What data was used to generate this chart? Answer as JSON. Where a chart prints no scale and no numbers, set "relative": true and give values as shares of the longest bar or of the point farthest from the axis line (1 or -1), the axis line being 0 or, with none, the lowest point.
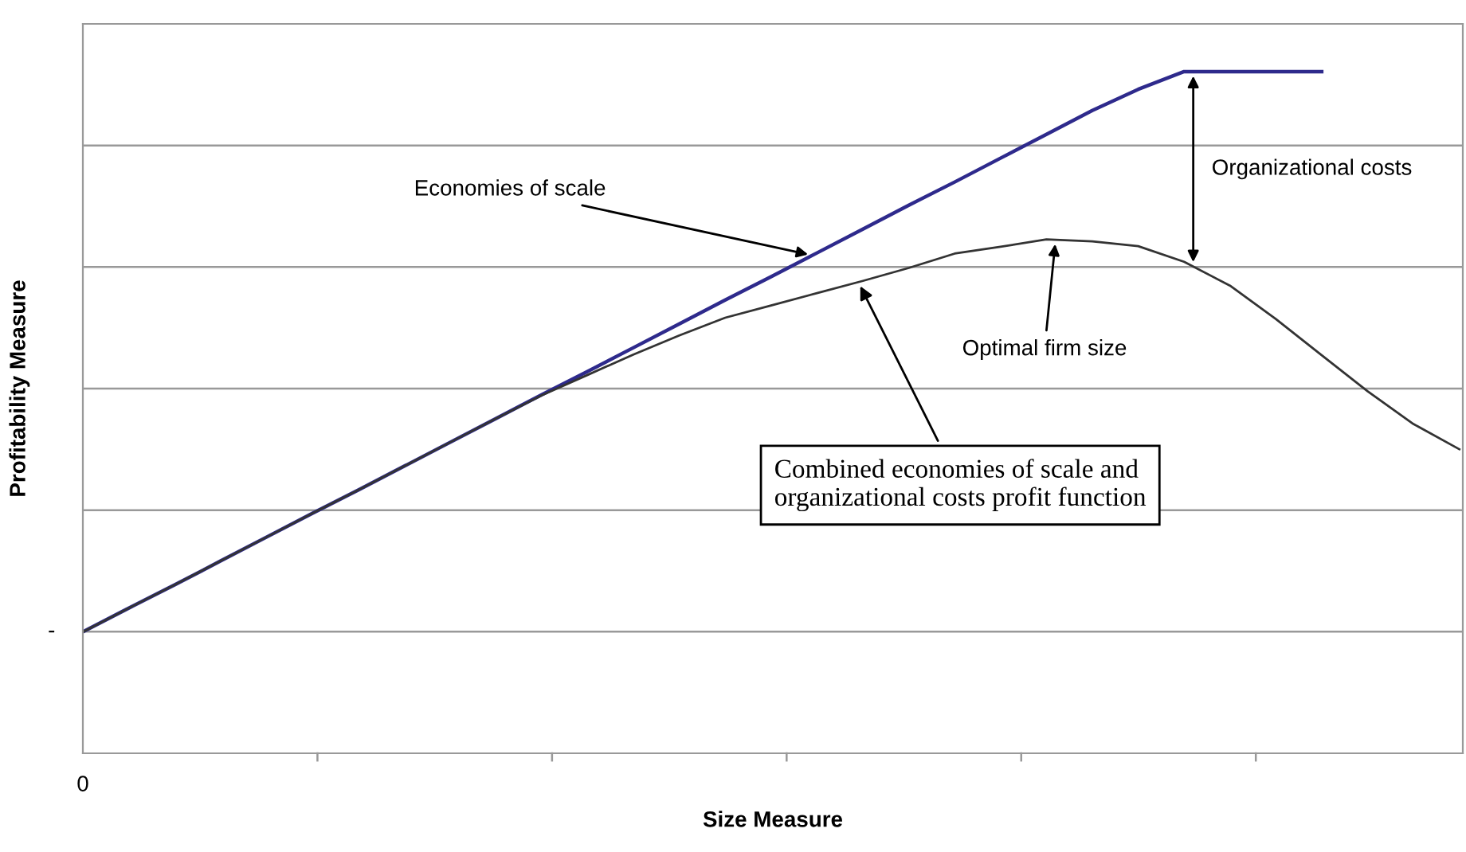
{
  "chart_data": {
    "type": "line",
    "relative": true,
    "xlabel": "Size Measure",
    "ylabel": "Profitability Measure",
    "grid": "y",
    "marker": "none",
    "line_style": "solid",
    "categories": [
      null,
      null,
      null,
      null,
      null,
      null,
      null,
      null,
      null,
      null,
      null,
      null,
      null,
      null,
      null,
      null,
      null,
      null,
      null,
      null,
      null,
      null,
      null,
      null,
      null,
      null,
      null,
      null,
      null,
      null,
      null
    ],
    "series": [
      {
        "color": "#2e2a8c",
        "values": [
          0.178,
          0.213,
          0.247,
          0.282,
          0.317,
          0.352,
          0.386,
          0.421,
          0.456,
          0.491,
          0.526,
          0.56,
          0.595,
          0.63,
          0.665,
          0.699,
          0.734,
          0.769,
          0.804,
          0.838,
          0.873,
          0.908,
          0.943,
          0.974,
          1.0,
          1.0,
          1.0,
          1.0,
          null,
          null,
          null
        ]
      },
      {
        "color": "#333333",
        "values": [
          0.178,
          0.213,
          0.247,
          0.282,
          0.317,
          0.352,
          0.386,
          0.421,
          0.456,
          0.491,
          0.525,
          0.555,
          0.585,
          0.613,
          0.639,
          0.657,
          0.675,
          0.693,
          0.712,
          0.733,
          0.743,
          0.754,
          0.751,
          0.744,
          0.721,
          0.686,
          0.637,
          0.584,
          0.531,
          0.483,
          0.446
        ]
      }
    ],
    "annotations": [
      "Economies of scale",
      "Organizational costs",
      "Optimal firm size",
      "Combined economies of scale and organizational costs profit function",
      "-",
      "0"
    ]
  }
}
